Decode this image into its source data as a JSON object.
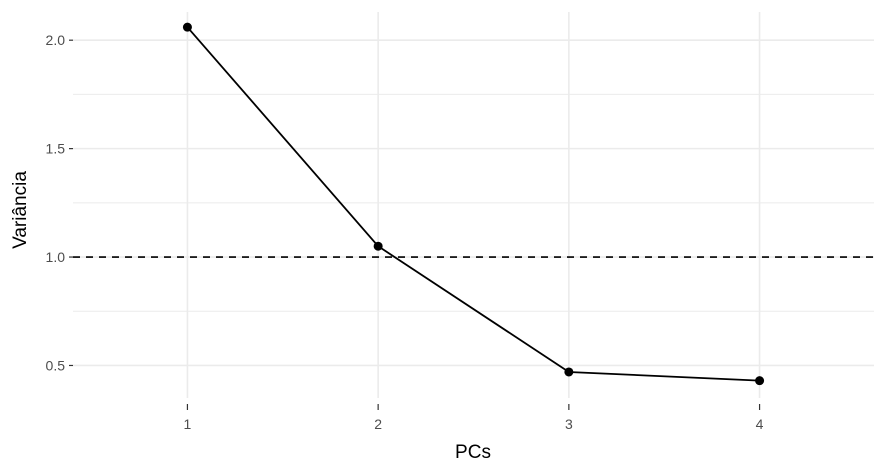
{
  "chart_data": {
    "type": "line",
    "title": "",
    "xlabel": "PCs",
    "ylabel": "Variância",
    "x": [
      1,
      2,
      3,
      4
    ],
    "x_tick_labels": [
      "1",
      "2",
      "3",
      "4"
    ],
    "xlim": [
      0.4,
      4.6
    ],
    "y_ticks": [
      0.5,
      1.0,
      1.5,
      2.0
    ],
    "y_tick_labels": [
      "0.5",
      "1.0",
      "1.5",
      "2.0"
    ],
    "ylim": [
      0.35,
      2.13
    ],
    "series": [
      {
        "values": [
          2.06,
          1.05,
          0.47,
          0.43
        ],
        "color": "#000000"
      }
    ],
    "reference_line": {
      "y": 1.0,
      "style": "dashed",
      "color": "#000000"
    },
    "grid": true,
    "grid_color": "#ebebeb",
    "legend": "none"
  }
}
